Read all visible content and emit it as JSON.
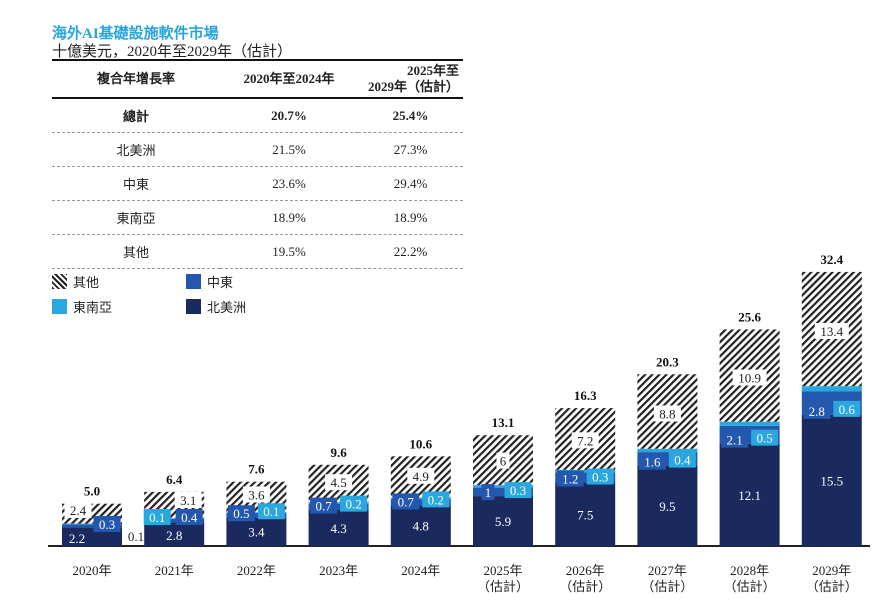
{
  "header": {
    "title": "海外AI基礎設施軟件市場",
    "subtitle": "十億美元，2020年至2029年（估計）"
  },
  "table": {
    "headers": [
      "複合年增長率",
      "2020年至2024年",
      "2025年至\n2029年（估計）"
    ],
    "rows": [
      {
        "label": "總計",
        "a": "20.7%",
        "b": "25.4%"
      },
      {
        "label": "北美洲",
        "a": "21.5%",
        "b": "27.3%"
      },
      {
        "label": "中東",
        "a": "23.6%",
        "b": "29.4%"
      },
      {
        "label": "東南亞",
        "a": "18.9%",
        "b": "18.9%"
      },
      {
        "label": "其他",
        "a": "19.5%",
        "b": "22.2%"
      }
    ]
  },
  "colors": {
    "north_america": "#1b2a5e",
    "middle_east": "#2457ae",
    "southeast_asia": "#2aa7de",
    "title": "#2aa5dc"
  },
  "chart_data": {
    "type": "bar",
    "stacked": true,
    "title": "海外AI基礎設施軟件市場",
    "ylabel": "十億美元",
    "categories": [
      "2020年",
      "2021年",
      "2022年",
      "2023年",
      "2024年",
      "2025年\n（估計）",
      "2026年\n（估計）",
      "2027年\n（估計）",
      "2028年\n（估計）",
      "2029年\n（估計）"
    ],
    "series": [
      {
        "name": "北美洲",
        "values": [
          2.2,
          2.8,
          3.4,
          4.3,
          4.8,
          5.9,
          7.5,
          9.5,
          12.1,
          15.5
        ]
      },
      {
        "name": "中東",
        "values": [
          0.3,
          0.4,
          0.5,
          0.7,
          0.7,
          1.0,
          1.2,
          1.6,
          2.1,
          2.8
        ]
      },
      {
        "name": "東南亞",
        "values": [
          0.1,
          0.1,
          0.1,
          0.2,
          0.2,
          0.3,
          0.3,
          0.4,
          0.5,
          0.6
        ]
      },
      {
        "name": "其他",
        "values": [
          2.4,
          3.1,
          3.6,
          4.5,
          4.9,
          6.0,
          7.2,
          8.8,
          10.9,
          13.4
        ]
      }
    ],
    "totals": [
      5.0,
      6.4,
      7.6,
      9.6,
      10.6,
      13.1,
      16.3,
      20.3,
      25.6,
      32.4
    ],
    "legend": [
      "其他",
      "中東",
      "東南亞",
      "北美洲"
    ],
    "legend_position": "top-left"
  }
}
